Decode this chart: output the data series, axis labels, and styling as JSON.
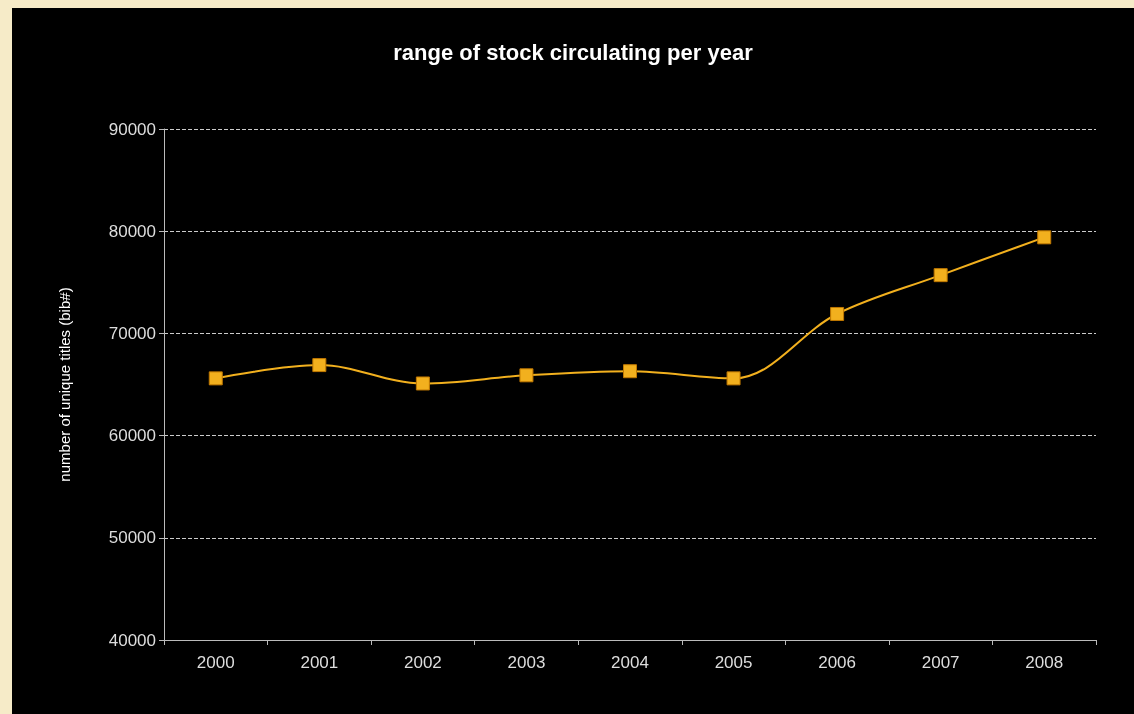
{
  "chart_data": {
    "type": "line",
    "title": "range of stock circulating per year",
    "ylabel": "number of unique titles (bib#)",
    "categories": [
      "2000",
      "2001",
      "2002",
      "2003",
      "2004",
      "2005",
      "2006",
      "2007",
      "2008"
    ],
    "series": [
      {
        "color": "#f2b01e",
        "values": [
          65600,
          66900,
          65100,
          65900,
          66300,
          65600,
          71900,
          75700,
          79400
        ]
      }
    ],
    "ylim": [
      40000,
      90000
    ],
    "yticks": [
      40000,
      50000,
      60000,
      70000,
      80000,
      90000
    ],
    "grid": "y",
    "marker": "square",
    "line_style": "solid"
  }
}
